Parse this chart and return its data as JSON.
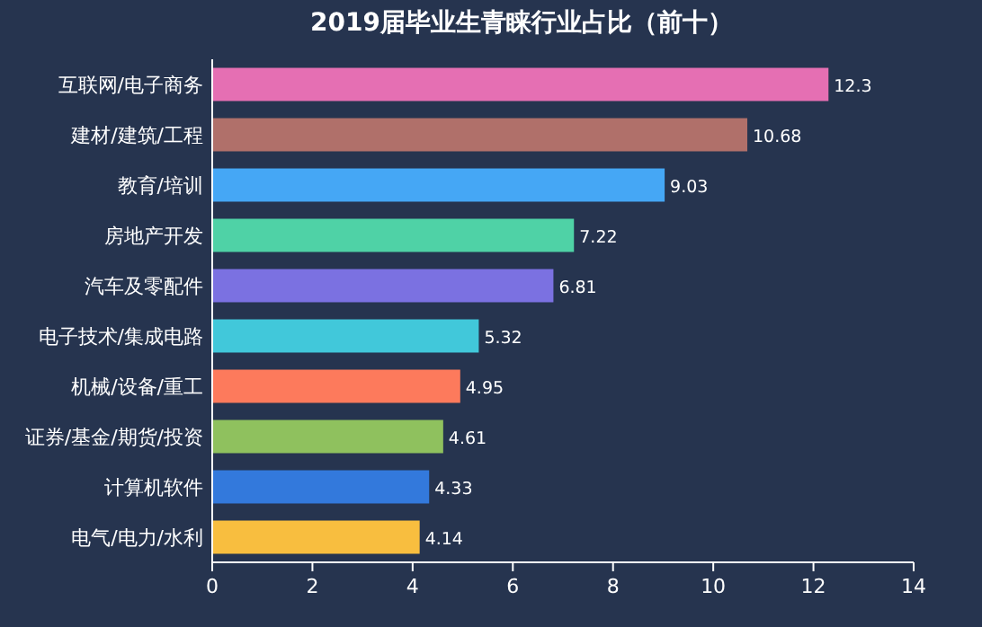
{
  "chart_data": {
    "type": "bar",
    "orientation": "horizontal",
    "title": "2019届毕业生青睐行业占比（前十）",
    "categories": [
      "互联网/电子商务",
      "建材/建筑/工程",
      "教育/培训",
      "房地产开发",
      "汽车及零配件",
      "电子技术/集成电路",
      "机械/设备/重工",
      "证券/基金/期货/投资",
      "计算机软件",
      "电气/电力/水利"
    ],
    "values": [
      12.3,
      10.68,
      9.03,
      7.22,
      6.81,
      5.32,
      4.95,
      4.61,
      4.33,
      4.14
    ],
    "colors": [
      "#e56fb3",
      "#b0706a",
      "#45a7f5",
      "#4fd2a6",
      "#7b71e1",
      "#41c8da",
      "#fd7a5c",
      "#8fc15e",
      "#3379dc",
      "#f8be3f"
    ],
    "xlim": [
      0,
      14
    ],
    "xticks": [
      0,
      2,
      4,
      6,
      8,
      10,
      12,
      14
    ],
    "data_labels": true
  }
}
